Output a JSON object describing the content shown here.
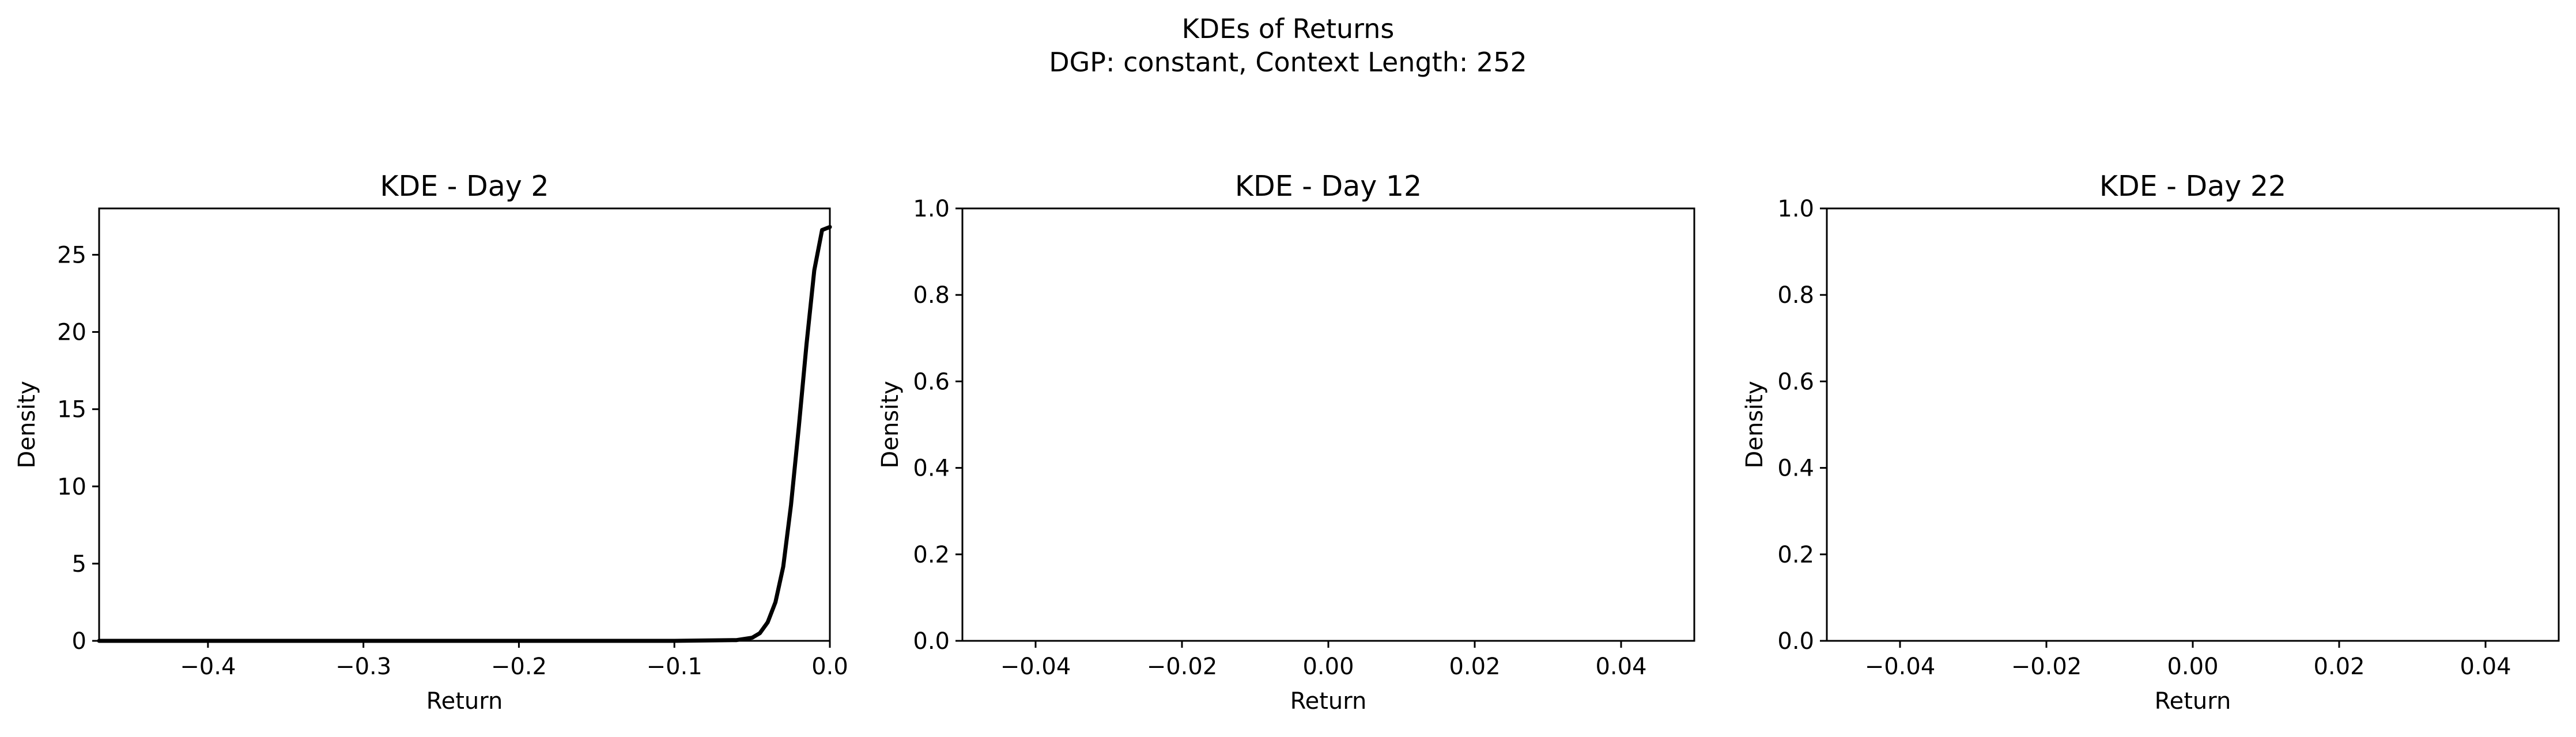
{
  "figure": {
    "title_line1": "KDEs of Returns",
    "title_line2": "DGP: constant, Context Length: 252"
  },
  "chart_data": [
    {
      "type": "line",
      "title": "KDE - Day 2",
      "xlabel": "Return",
      "ylabel": "Density",
      "xlim": [
        -0.47,
        0.0
      ],
      "ylim": [
        0,
        28
      ],
      "xticks": [
        -0.4,
        -0.3,
        -0.2,
        -0.1,
        0.0
      ],
      "xtick_labels": [
        "−0.4",
        "−0.3",
        "−0.2",
        "−0.1",
        "0.0"
      ],
      "yticks": [
        0,
        5,
        10,
        15,
        20,
        25
      ],
      "ytick_labels": [
        "0",
        "5",
        "10",
        "15",
        "20",
        "25"
      ],
      "grid": false,
      "line_color": "#000000",
      "series": [
        {
          "x": [
            -0.47,
            -0.3,
            -0.1,
            -0.06,
            -0.05,
            -0.045,
            -0.04,
            -0.035,
            -0.03,
            -0.025,
            -0.02,
            -0.015,
            -0.01,
            -0.005,
            0.0
          ],
          "y": [
            0,
            0,
            0,
            0.05,
            0.2,
            0.5,
            1.2,
            2.5,
            4.8,
            8.8,
            13.8,
            19.2,
            24.0,
            26.6,
            26.8
          ]
        }
      ]
    },
    {
      "type": "line",
      "title": "KDE - Day 12",
      "xlabel": "Return",
      "ylabel": "Density",
      "xlim": [
        -0.05,
        0.05
      ],
      "ylim": [
        0,
        1
      ],
      "xticks": [
        -0.04,
        -0.02,
        0.0,
        0.02,
        0.04
      ],
      "xtick_labels": [
        "−0.04",
        "−0.02",
        "0.00",
        "0.02",
        "0.04"
      ],
      "yticks": [
        0.0,
        0.2,
        0.4,
        0.6,
        0.8,
        1.0
      ],
      "ytick_labels": [
        "0.0",
        "0.2",
        "0.4",
        "0.6",
        "0.8",
        "1.0"
      ],
      "grid": false,
      "series": []
    },
    {
      "type": "line",
      "title": "KDE - Day 22",
      "xlabel": "Return",
      "ylabel": "Density",
      "xlim": [
        -0.05,
        0.05
      ],
      "ylim": [
        0,
        1
      ],
      "xticks": [
        -0.04,
        -0.02,
        0.0,
        0.02,
        0.04
      ],
      "xtick_labels": [
        "−0.04",
        "−0.02",
        "0.00",
        "0.02",
        "0.04"
      ],
      "yticks": [
        0.0,
        0.2,
        0.4,
        0.6,
        0.8,
        1.0
      ],
      "ytick_labels": [
        "0.0",
        "0.2",
        "0.4",
        "0.6",
        "0.8",
        "1.0"
      ],
      "grid": false,
      "series": []
    }
  ]
}
